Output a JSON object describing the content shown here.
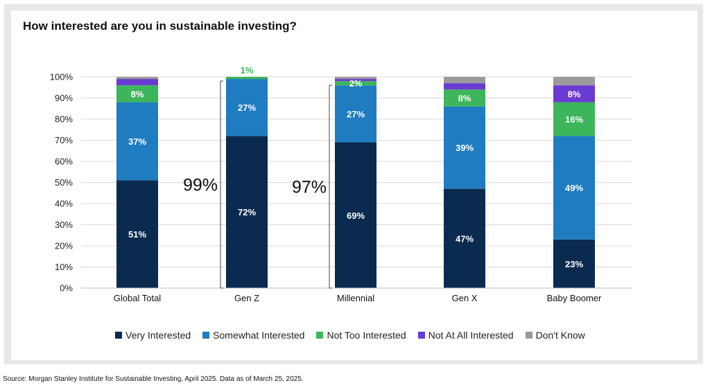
{
  "chart_data": {
    "type": "bar",
    "stacked": true,
    "title": "How interested are you in sustainable investing?",
    "categories": [
      "Global Total",
      "Gen Z",
      "Millennial",
      "Gen X",
      "Baby Boomer"
    ],
    "series": [
      {
        "name": "Very Interested",
        "color": "#0b2a4f",
        "label_color": "#ffffff",
        "values": [
          51,
          72,
          69,
          47,
          23
        ]
      },
      {
        "name": "Somewhat Interested",
        "color": "#1f7cc0",
        "label_color": "#ffffff",
        "values": [
          37,
          27,
          27,
          39,
          49
        ]
      },
      {
        "name": "Not Too Interested",
        "color": "#3cb55b",
        "label_color": "#ffffff",
        "values": [
          8,
          1,
          2,
          8,
          16
        ]
      },
      {
        "name": "Not At All Interested",
        "color": "#6a3bd2",
        "label_color": "#ffffff",
        "values": [
          3,
          0,
          1,
          3,
          8
        ]
      },
      {
        "name": "Don't Know",
        "color": "#9a9a9a",
        "label_color": "#ffffff",
        "values": [
          1,
          0,
          1,
          3,
          4
        ]
      }
    ],
    "segment_labels": [
      {
        "category": 0,
        "series": 0,
        "text": "51%"
      },
      {
        "category": 0,
        "series": 1,
        "text": "37%"
      },
      {
        "category": 0,
        "series": 2,
        "text": "8%"
      },
      {
        "category": 1,
        "series": 0,
        "text": "72%"
      },
      {
        "category": 1,
        "series": 1,
        "text": "27%"
      },
      {
        "category": 1,
        "series": 2,
        "text": "1%",
        "position": "above",
        "color": "#3cb55b"
      },
      {
        "category": 2,
        "series": 0,
        "text": "69%"
      },
      {
        "category": 2,
        "series": 1,
        "text": "27%"
      },
      {
        "category": 2,
        "series": 2,
        "text": "2%"
      },
      {
        "category": 3,
        "series": 0,
        "text": "47%"
      },
      {
        "category": 3,
        "series": 1,
        "text": "39%"
      },
      {
        "category": 3,
        "series": 2,
        "text": "8%"
      },
      {
        "category": 4,
        "series": 0,
        "text": "23%"
      },
      {
        "category": 4,
        "series": 1,
        "text": "49%"
      },
      {
        "category": 4,
        "series": 2,
        "text": "16%"
      },
      {
        "category": 4,
        "series": 3,
        "text": "8%"
      }
    ],
    "brackets": [
      {
        "category": 1,
        "text": "99%",
        "from": 0,
        "to": 99
      },
      {
        "category": 2,
        "text": "97%",
        "from": 0,
        "to": 97
      }
    ],
    "yticks": [
      "0%",
      "10%",
      "20%",
      "30%",
      "40%",
      "50%",
      "60%",
      "70%",
      "80%",
      "90%",
      "100%"
    ],
    "ylim": [
      0,
      100
    ],
    "grid": true,
    "legend_position": "bottom"
  },
  "source": "Source: Morgan Stanley Institute for Sustainable Investing, April 2025. Data as of March 25, 2025."
}
